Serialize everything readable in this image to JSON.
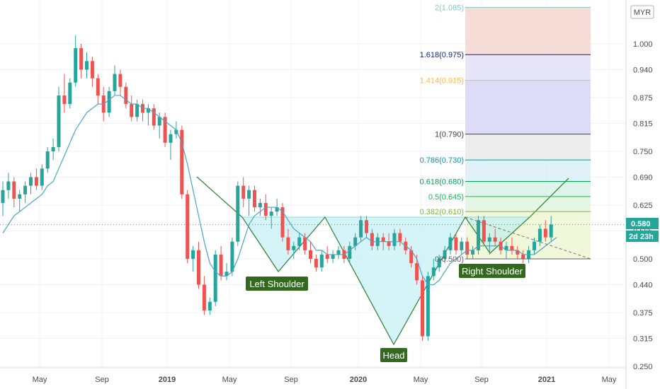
{
  "chart_data": {
    "type": "candlestick",
    "currency": "MYR",
    "last_price": "0.580",
    "countdown": "2d 23h",
    "x_axis_labels": [
      "May",
      "Sep",
      "2019",
      "May",
      "Sep",
      "2020",
      "May",
      "Sep",
      "2021",
      "May"
    ],
    "y_ticks": [
      "1.000",
      "0.940",
      "0.875",
      "0.815",
      "0.750",
      "0.690",
      "0.625",
      "0.565",
      "0.500",
      "0.440",
      "0.375",
      "0.315",
      "0.250"
    ],
    "ylim": [
      0.25,
      1.085
    ],
    "candles": [
      [
        0.63,
        0.68,
        0.6,
        0.66
      ],
      [
        0.66,
        0.7,
        0.64,
        0.68
      ],
      [
        0.68,
        0.69,
        0.62,
        0.64
      ],
      [
        0.64,
        0.66,
        0.61,
        0.65
      ],
      [
        0.65,
        0.68,
        0.63,
        0.67
      ],
      [
        0.67,
        0.7,
        0.65,
        0.69
      ],
      [
        0.69,
        0.71,
        0.66,
        0.67
      ],
      [
        0.67,
        0.72,
        0.66,
        0.71
      ],
      [
        0.71,
        0.76,
        0.7,
        0.75
      ],
      [
        0.75,
        0.78,
        0.73,
        0.76
      ],
      [
        0.76,
        0.9,
        0.75,
        0.88
      ],
      [
        0.88,
        0.93,
        0.84,
        0.86
      ],
      [
        0.86,
        0.92,
        0.85,
        0.91
      ],
      [
        0.91,
        1.02,
        0.9,
        0.99
      ],
      [
        0.99,
        1.0,
        0.92,
        0.94
      ],
      [
        0.94,
        0.98,
        0.92,
        0.96
      ],
      [
        0.96,
        0.97,
        0.9,
        0.92
      ],
      [
        0.92,
        0.93,
        0.86,
        0.88
      ],
      [
        0.88,
        0.9,
        0.82,
        0.84
      ],
      [
        0.84,
        0.9,
        0.83,
        0.89
      ],
      [
        0.89,
        0.95,
        0.88,
        0.93
      ],
      [
        0.93,
        0.94,
        0.88,
        0.9
      ],
      [
        0.9,
        0.91,
        0.85,
        0.86
      ],
      [
        0.86,
        0.88,
        0.82,
        0.83
      ],
      [
        0.83,
        0.87,
        0.82,
        0.86
      ],
      [
        0.86,
        0.87,
        0.82,
        0.84
      ],
      [
        0.84,
        0.86,
        0.81,
        0.85
      ],
      [
        0.85,
        0.86,
        0.8,
        0.81
      ],
      [
        0.81,
        0.84,
        0.78,
        0.83
      ],
      [
        0.83,
        0.84,
        0.76,
        0.77
      ],
      [
        0.77,
        0.8,
        0.73,
        0.79
      ],
      [
        0.79,
        0.82,
        0.78,
        0.8
      ],
      [
        0.8,
        0.81,
        0.64,
        0.65
      ],
      [
        0.65,
        0.66,
        0.49,
        0.5
      ],
      [
        0.5,
        0.53,
        0.47,
        0.52
      ],
      [
        0.52,
        0.54,
        0.43,
        0.44
      ],
      [
        0.44,
        0.46,
        0.37,
        0.38
      ],
      [
        0.38,
        0.41,
        0.37,
        0.4
      ],
      [
        0.4,
        0.52,
        0.39,
        0.51
      ],
      [
        0.51,
        0.53,
        0.45,
        0.46
      ],
      [
        0.46,
        0.49,
        0.45,
        0.47
      ],
      [
        0.47,
        0.55,
        0.46,
        0.54
      ],
      [
        0.54,
        0.68,
        0.53,
        0.67
      ],
      [
        0.67,
        0.69,
        0.62,
        0.64
      ],
      [
        0.64,
        0.67,
        0.6,
        0.66
      ],
      [
        0.66,
        0.67,
        0.61,
        0.62
      ],
      [
        0.62,
        0.64,
        0.6,
        0.63
      ],
      [
        0.63,
        0.65,
        0.59,
        0.6
      ],
      [
        0.6,
        0.62,
        0.57,
        0.61
      ],
      [
        0.61,
        0.64,
        0.6,
        0.62
      ],
      [
        0.62,
        0.63,
        0.54,
        0.55
      ],
      [
        0.55,
        0.57,
        0.51,
        0.52
      ],
      [
        0.52,
        0.54,
        0.5,
        0.53
      ],
      [
        0.53,
        0.56,
        0.52,
        0.55
      ],
      [
        0.55,
        0.56,
        0.51,
        0.52
      ],
      [
        0.52,
        0.54,
        0.49,
        0.5
      ],
      [
        0.5,
        0.51,
        0.47,
        0.48
      ],
      [
        0.48,
        0.52,
        0.47,
        0.51
      ],
      [
        0.51,
        0.53,
        0.49,
        0.5
      ],
      [
        0.5,
        0.52,
        0.49,
        0.51
      ],
      [
        0.51,
        0.53,
        0.5,
        0.52
      ],
      [
        0.52,
        0.53,
        0.49,
        0.5
      ],
      [
        0.5,
        0.54,
        0.49,
        0.53
      ],
      [
        0.53,
        0.56,
        0.52,
        0.55
      ],
      [
        0.55,
        0.6,
        0.54,
        0.59
      ],
      [
        0.59,
        0.6,
        0.55,
        0.56
      ],
      [
        0.56,
        0.57,
        0.52,
        0.53
      ],
      [
        0.53,
        0.56,
        0.52,
        0.55
      ],
      [
        0.55,
        0.56,
        0.52,
        0.54
      ],
      [
        0.54,
        0.56,
        0.52,
        0.53
      ],
      [
        0.53,
        0.57,
        0.52,
        0.56
      ],
      [
        0.56,
        0.57,
        0.53,
        0.54
      ],
      [
        0.54,
        0.55,
        0.51,
        0.52
      ],
      [
        0.52,
        0.53,
        0.48,
        0.49
      ],
      [
        0.49,
        0.51,
        0.44,
        0.45
      ],
      [
        0.45,
        0.46,
        0.31,
        0.32
      ],
      [
        0.32,
        0.47,
        0.31,
        0.46
      ],
      [
        0.46,
        0.5,
        0.45,
        0.48
      ],
      [
        0.48,
        0.51,
        0.47,
        0.5
      ],
      [
        0.5,
        0.53,
        0.49,
        0.52
      ],
      [
        0.52,
        0.56,
        0.51,
        0.55
      ],
      [
        0.55,
        0.56,
        0.51,
        0.52
      ],
      [
        0.52,
        0.55,
        0.51,
        0.54
      ],
      [
        0.54,
        0.55,
        0.5,
        0.51
      ],
      [
        0.51,
        0.53,
        0.5,
        0.52
      ],
      [
        0.52,
        0.6,
        0.51,
        0.59
      ],
      [
        0.59,
        0.6,
        0.53,
        0.54
      ],
      [
        0.54,
        0.56,
        0.51,
        0.55
      ],
      [
        0.55,
        0.57,
        0.53,
        0.54
      ],
      [
        0.54,
        0.55,
        0.51,
        0.52
      ],
      [
        0.52,
        0.54,
        0.5,
        0.53
      ],
      [
        0.53,
        0.55,
        0.51,
        0.52
      ],
      [
        0.52,
        0.53,
        0.5,
        0.51
      ],
      [
        0.51,
        0.52,
        0.49,
        0.5
      ],
      [
        0.5,
        0.53,
        0.49,
        0.52
      ],
      [
        0.52,
        0.55,
        0.51,
        0.54
      ],
      [
        0.54,
        0.58,
        0.53,
        0.57
      ],
      [
        0.57,
        0.59,
        0.54,
        0.55
      ],
      [
        0.55,
        0.6,
        0.54,
        0.58
      ]
    ],
    "sma_line": [
      0.56,
      0.58,
      0.6,
      0.61,
      0.62,
      0.63,
      0.64,
      0.65,
      0.67,
      0.68,
      0.71,
      0.74,
      0.77,
      0.8,
      0.82,
      0.84,
      0.85,
      0.86,
      0.86,
      0.87,
      0.88,
      0.88,
      0.87,
      0.86,
      0.86,
      0.85,
      0.85,
      0.84,
      0.83,
      0.82,
      0.81,
      0.8,
      0.77,
      0.72,
      0.66,
      0.6,
      0.54,
      0.49,
      0.47,
      0.46,
      0.46,
      0.47,
      0.5,
      0.54,
      0.58,
      0.6,
      0.61,
      0.62,
      0.62,
      0.62,
      0.61,
      0.59,
      0.57,
      0.56,
      0.55,
      0.54,
      0.52,
      0.52,
      0.51,
      0.51,
      0.51,
      0.51,
      0.52,
      0.53,
      0.54,
      0.55,
      0.54,
      0.54,
      0.54,
      0.54,
      0.54,
      0.54,
      0.53,
      0.52,
      0.5,
      0.46,
      0.44,
      0.44,
      0.45,
      0.47,
      0.49,
      0.5,
      0.51,
      0.52,
      0.52,
      0.53,
      0.53,
      0.53,
      0.53,
      0.53,
      0.52,
      0.52,
      0.52,
      0.51,
      0.51,
      0.51,
      0.52,
      0.53,
      0.54,
      0.55
    ],
    "fibonacci_levels": [
      {
        "ratio": "2",
        "value": "1.085",
        "label": "2(1.085)",
        "price": 1.085,
        "color": "#80cbc4"
      },
      {
        "ratio": "1.618",
        "value": "0.975",
        "label": "1.618(0.975)",
        "price": 0.975,
        "color": "#1a237e"
      },
      {
        "ratio": "1.414",
        "value": "0.915",
        "label": "1.414(0.915)",
        "price": 0.915,
        "color": "#ffb74d"
      },
      {
        "ratio": "1",
        "value": "0.790",
        "label": "1(0.790)",
        "price": 0.79,
        "color": "#424242"
      },
      {
        "ratio": "0.786",
        "value": "0.730",
        "label": "0.786(0.730)",
        "price": 0.73,
        "color": "#0097a7"
      },
      {
        "ratio": "0.618",
        "value": "0.680",
        "label": "0.618(0.680)",
        "price": 0.68,
        "color": "#00a152"
      },
      {
        "ratio": "0.5",
        "value": "0.645",
        "label": "0.5(0.645)",
        "price": 0.645,
        "color": "#00c853"
      },
      {
        "ratio": "0.382",
        "value": "0.610",
        "label": "0.382(0.610)",
        "price": 0.61,
        "color": "#7cb342"
      },
      {
        "ratio": "0",
        "value": "0.500",
        "label": "0(0.500)",
        "price": 0.5,
        "color": "#616161"
      }
    ],
    "pattern_labels": {
      "left_shoulder": "Left Shoulder",
      "head": "Head",
      "right_shoulder": "Right Shoulder"
    },
    "colors": {
      "up": "#26a69a",
      "down": "#ef5350",
      "sma": "#4ba3c7",
      "pattern_fill": "#b2ebf2",
      "label_bg": "#33691e"
    }
  }
}
